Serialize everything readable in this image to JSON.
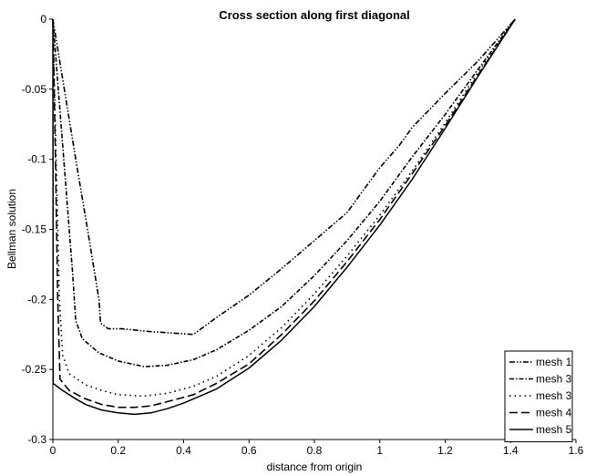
{
  "chart_data": {
    "type": "line",
    "title": "Cross section along first diagonal",
    "xlabel": "distance from origin",
    "ylabel": "Bellman solution",
    "xlim": [
      0,
      1.6
    ],
    "ylim": [
      -0.3,
      0
    ],
    "xticks": [
      {
        "value": 0,
        "label": "0"
      },
      {
        "value": 0.2,
        "label": "0.2"
      },
      {
        "value": 0.4,
        "label": "0.4"
      },
      {
        "value": 0.6,
        "label": "0.6"
      },
      {
        "value": 0.8,
        "label": "0.8"
      },
      {
        "value": 1.0,
        "label": "1"
      },
      {
        "value": 1.2,
        "label": "1.2"
      },
      {
        "value": 1.4,
        "label": "1.4"
      },
      {
        "value": 1.6,
        "label": "1.6"
      }
    ],
    "yticks": [
      {
        "value": 0,
        "label": "0"
      },
      {
        "value": -0.05,
        "label": "-0.05"
      },
      {
        "value": -0.1,
        "label": "-0.1"
      },
      {
        "value": -0.15,
        "label": "-0.15"
      },
      {
        "value": -0.2,
        "label": "-0.2"
      },
      {
        "value": -0.25,
        "label": "-0.25"
      },
      {
        "value": -0.3,
        "label": "-0.3"
      }
    ],
    "grid": false,
    "legend": "bottom-right",
    "series": [
      {
        "name": "mesh 1",
        "dash": "dash-dot-dot",
        "points": [
          [
            0,
            0
          ],
          [
            0.035,
            -0.05
          ],
          [
            0.07,
            -0.1
          ],
          [
            0.106,
            -0.15
          ],
          [
            0.141,
            -0.2
          ],
          [
            0.146,
            -0.217
          ],
          [
            0.17,
            -0.221
          ],
          [
            0.212,
            -0.221
          ],
          [
            0.3,
            -0.223
          ],
          [
            0.43,
            -0.225
          ],
          [
            0.5,
            -0.213
          ],
          [
            0.6,
            -0.197
          ],
          [
            0.7,
            -0.178
          ],
          [
            0.8,
            -0.158
          ],
          [
            0.9,
            -0.138
          ],
          [
            0.95,
            -0.122
          ],
          [
            1.0,
            -0.106
          ],
          [
            1.06,
            -0.09
          ],
          [
            1.1,
            -0.077
          ],
          [
            1.2,
            -0.053
          ],
          [
            1.3,
            -0.03
          ],
          [
            1.414,
            0
          ]
        ]
      },
      {
        "name": "mesh 3",
        "dash": "dash-dot",
        "points": [
          [
            0,
            0
          ],
          [
            0.02,
            -0.06
          ],
          [
            0.04,
            -0.12
          ],
          [
            0.06,
            -0.18
          ],
          [
            0.07,
            -0.215
          ],
          [
            0.09,
            -0.228
          ],
          [
            0.14,
            -0.238
          ],
          [
            0.2,
            -0.244
          ],
          [
            0.28,
            -0.248
          ],
          [
            0.35,
            -0.247
          ],
          [
            0.43,
            -0.243
          ],
          [
            0.5,
            -0.236
          ],
          [
            0.6,
            -0.222
          ],
          [
            0.7,
            -0.205
          ],
          [
            0.8,
            -0.183
          ],
          [
            0.9,
            -0.158
          ],
          [
            1.0,
            -0.13
          ],
          [
            1.1,
            -0.098
          ],
          [
            1.2,
            -0.068
          ],
          [
            1.3,
            -0.036
          ],
          [
            1.414,
            0
          ]
        ]
      },
      {
        "name": "mesh 3",
        "dash": "dotted",
        "points": [
          [
            0,
            0
          ],
          [
            0.01,
            -0.1
          ],
          [
            0.02,
            -0.2
          ],
          [
            0.03,
            -0.24
          ],
          [
            0.05,
            -0.253
          ],
          [
            0.1,
            -0.261
          ],
          [
            0.15,
            -0.265
          ],
          [
            0.2,
            -0.268
          ],
          [
            0.28,
            -0.269
          ],
          [
            0.35,
            -0.267
          ],
          [
            0.43,
            -0.262
          ],
          [
            0.5,
            -0.255
          ],
          [
            0.6,
            -0.24
          ],
          [
            0.7,
            -0.22
          ],
          [
            0.8,
            -0.196
          ],
          [
            0.9,
            -0.169
          ],
          [
            1.0,
            -0.14
          ],
          [
            1.1,
            -0.108
          ],
          [
            1.2,
            -0.074
          ],
          [
            1.3,
            -0.038
          ],
          [
            1.414,
            0
          ]
        ]
      },
      {
        "name": "mesh 4",
        "dash": "dashed",
        "points": [
          [
            0,
            0
          ],
          [
            0.008,
            -0.1
          ],
          [
            0.015,
            -0.2
          ],
          [
            0.022,
            -0.257
          ],
          [
            0.05,
            -0.265
          ],
          [
            0.1,
            -0.271
          ],
          [
            0.15,
            -0.275
          ],
          [
            0.2,
            -0.277
          ],
          [
            0.25,
            -0.277
          ],
          [
            0.3,
            -0.276
          ],
          [
            0.35,
            -0.273
          ],
          [
            0.43,
            -0.268
          ],
          [
            0.5,
            -0.26
          ],
          [
            0.6,
            -0.246
          ],
          [
            0.7,
            -0.225
          ],
          [
            0.8,
            -0.201
          ],
          [
            0.9,
            -0.173
          ],
          [
            1.0,
            -0.143
          ],
          [
            1.1,
            -0.11
          ],
          [
            1.2,
            -0.076
          ],
          [
            1.3,
            -0.04
          ],
          [
            1.414,
            0
          ]
        ]
      },
      {
        "name": "mesh 5",
        "dash": "solid",
        "points": [
          [
            0,
            0
          ],
          [
            0.001,
            -0.26
          ],
          [
            0.03,
            -0.265
          ],
          [
            0.07,
            -0.271
          ],
          [
            0.1,
            -0.275
          ],
          [
            0.15,
            -0.279
          ],
          [
            0.2,
            -0.281
          ],
          [
            0.25,
            -0.282
          ],
          [
            0.3,
            -0.281
          ],
          [
            0.35,
            -0.278
          ],
          [
            0.4,
            -0.274
          ],
          [
            0.5,
            -0.264
          ],
          [
            0.6,
            -0.249
          ],
          [
            0.7,
            -0.229
          ],
          [
            0.8,
            -0.205
          ],
          [
            0.9,
            -0.177
          ],
          [
            1.0,
            -0.147
          ],
          [
            1.1,
            -0.114
          ],
          [
            1.2,
            -0.078
          ],
          [
            1.3,
            -0.041
          ],
          [
            1.414,
            0
          ]
        ]
      }
    ]
  }
}
